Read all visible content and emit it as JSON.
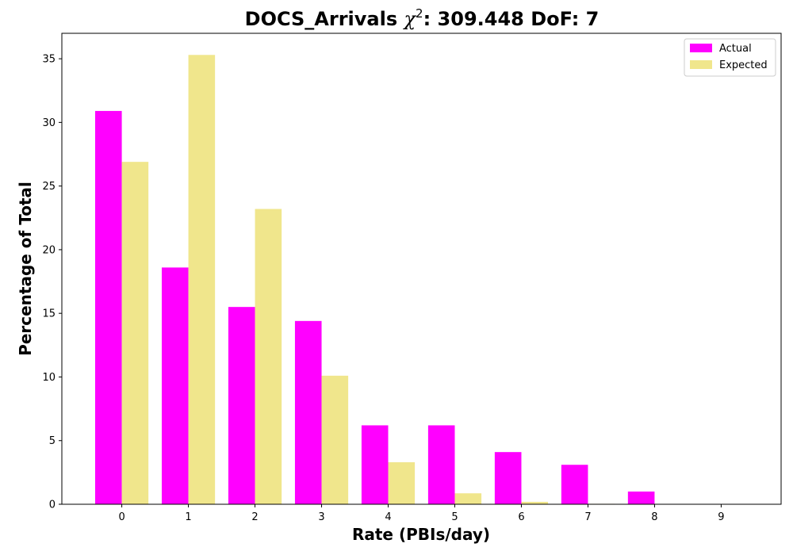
{
  "chart_data": {
    "type": "bar",
    "title_prefix": "DOCS_Arrivals ",
    "title_chi": "χ",
    "title_sup": "2",
    "title_suffix": ": 309.448 DoF: 7",
    "xlabel": "Rate (PBIs/day)",
    "ylabel": "Percentage of Total",
    "categories": [
      "0",
      "1",
      "2",
      "3",
      "4",
      "5",
      "6",
      "7",
      "8",
      "9"
    ],
    "yticks": [
      "0",
      "5",
      "10",
      "15",
      "20",
      "25",
      "30",
      "35"
    ],
    "ylim": [
      0,
      37
    ],
    "xlim": [
      -0.9,
      9.9
    ],
    "legend_position": "top-right",
    "grid": false,
    "series": [
      {
        "name": "Actual",
        "color": "#ff00ff",
        "values": [
          30.9,
          18.6,
          15.5,
          14.4,
          6.2,
          6.2,
          4.1,
          3.1,
          1.0,
          0
        ]
      },
      {
        "name": "Expected",
        "color": "#f0e68c",
        "values": [
          26.9,
          35.3,
          23.2,
          10.1,
          3.3,
          0.86,
          0.19,
          0.035,
          0.005,
          0.001
        ]
      }
    ]
  }
}
